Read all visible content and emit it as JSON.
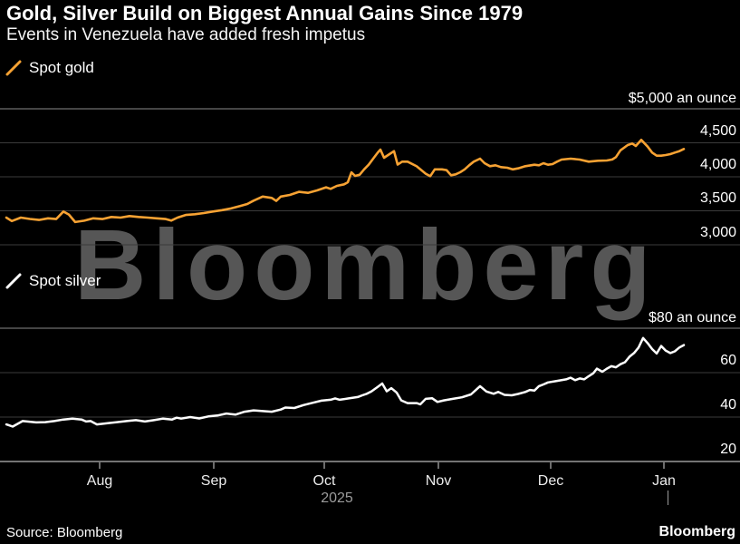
{
  "header": {
    "title": "Gold, Silver Build on Biggest Annual Gains Since 1979",
    "subtitle": "Events in Venezuela have added fresh impetus"
  },
  "legend": {
    "gold_label": "Spot gold",
    "silver_label": "Spot silver"
  },
  "watermark": "Bloomberg",
  "footer": {
    "source": "Source: Bloomberg",
    "brand": "Bloomberg"
  },
  "colors": {
    "background": "#000000",
    "gold_line": "#f7a233",
    "silver_line": "#ffffff",
    "gridline": "#3b3b3b",
    "panel_top_rule": "#8a8a8a",
    "axis_line": "#e8e8e8",
    "tick_mark": "#d9d9d9",
    "text": "#ffffff",
    "muted_text": "#9b9b9b",
    "watermark": "#565656"
  },
  "x_axis": {
    "tick_labels": [
      "Aug",
      "Sep",
      "Oct",
      "Nov",
      "Dec",
      "Jan"
    ],
    "year_label": "2025"
  },
  "chart_data": [
    {
      "type": "line",
      "name": "Spot gold",
      "unit": "US dollars an ounce",
      "color": "#f7a233",
      "y_axis": {
        "top_label": "$5,000 an ounce",
        "ticks": [
          5000,
          4500,
          4000,
          3500,
          3000
        ],
        "tick_labels": [
          "4,500",
          "4,000",
          "3,500",
          "3,000"
        ]
      },
      "y_range_shown": [
        3000,
        5000
      ],
      "points": [
        [
          7,
          3400
        ],
        [
          13,
          3350
        ],
        [
          23,
          3400
        ],
        [
          33,
          3380
        ],
        [
          43,
          3365
        ],
        [
          53,
          3390
        ],
        [
          62,
          3378
        ],
        [
          70,
          3490
        ],
        [
          76,
          3445
        ],
        [
          83,
          3335
        ],
        [
          93,
          3355
        ],
        [
          103,
          3390
        ],
        [
          113,
          3378
        ],
        [
          123,
          3410
        ],
        [
          133,
          3400
        ],
        [
          143,
          3422
        ],
        [
          153,
          3410
        ],
        [
          163,
          3400
        ],
        [
          173,
          3390
        ],
        [
          183,
          3378
        ],
        [
          189,
          3356
        ],
        [
          196,
          3400
        ],
        [
          205,
          3438
        ],
        [
          215,
          3450
        ],
        [
          225,
          3467
        ],
        [
          235,
          3490
        ],
        [
          245,
          3510
        ],
        [
          255,
          3535
        ],
        [
          265,
          3570
        ],
        [
          273,
          3600
        ],
        [
          280,
          3650
        ],
        [
          290,
          3710
        ],
        [
          300,
          3690
        ],
        [
          305,
          3645
        ],
        [
          310,
          3710
        ],
        [
          320,
          3733
        ],
        [
          330,
          3778
        ],
        [
          340,
          3764
        ],
        [
          350,
          3800
        ],
        [
          360,
          3845
        ],
        [
          365,
          3822
        ],
        [
          372,
          3867
        ],
        [
          380,
          3890
        ],
        [
          384,
          3920
        ],
        [
          388,
          4065
        ],
        [
          392,
          4013
        ],
        [
          397,
          4030
        ],
        [
          402,
          4110
        ],
        [
          407,
          4178
        ],
        [
          412,
          4267
        ],
        [
          417,
          4355
        ],
        [
          420,
          4400
        ],
        [
          424,
          4280
        ],
        [
          430,
          4333
        ],
        [
          435,
          4378
        ],
        [
          439,
          4180
        ],
        [
          444,
          4222
        ],
        [
          450,
          4222
        ],
        [
          460,
          4155
        ],
        [
          470,
          4045
        ],
        [
          475,
          4010
        ],
        [
          480,
          4110
        ],
        [
          488,
          4110
        ],
        [
          493,
          4098
        ],
        [
          498,
          4022
        ],
        [
          503,
          4036
        ],
        [
          508,
          4067
        ],
        [
          513,
          4110
        ],
        [
          518,
          4170
        ],
        [
          523,
          4222
        ],
        [
          530,
          4267
        ],
        [
          535,
          4200
        ],
        [
          541,
          4156
        ],
        [
          547,
          4170
        ],
        [
          553,
          4142
        ],
        [
          560,
          4133
        ],
        [
          566,
          4110
        ],
        [
          572,
          4124
        ],
        [
          580,
          4156
        ],
        [
          590,
          4178
        ],
        [
          595,
          4169
        ],
        [
          600,
          4200
        ],
        [
          605,
          4178
        ],
        [
          610,
          4187
        ],
        [
          615,
          4222
        ],
        [
          620,
          4253
        ],
        [
          630,
          4267
        ],
        [
          640,
          4253
        ],
        [
          650,
          4222
        ],
        [
          660,
          4236
        ],
        [
          670,
          4240
        ],
        [
          676,
          4255
        ],
        [
          680,
          4290
        ],
        [
          685,
          4390
        ],
        [
          693,
          4467
        ],
        [
          698,
          4489
        ],
        [
          702,
          4453
        ],
        [
          708,
          4543
        ],
        [
          715,
          4444
        ],
        [
          720,
          4356
        ],
        [
          725,
          4311
        ],
        [
          730,
          4311
        ],
        [
          735,
          4320
        ],
        [
          740,
          4333
        ],
        [
          745,
          4356
        ],
        [
          750,
          4378
        ],
        [
          755,
          4410
        ]
      ]
    },
    {
      "type": "line",
      "name": "Spot silver",
      "unit": "US dollars an ounce",
      "color": "#ffffff",
      "y_axis": {
        "top_label": "$80 an ounce",
        "ticks": [
          80,
          60,
          40,
          20
        ],
        "tick_labels": [
          "60",
          "40",
          "20"
        ]
      },
      "y_range_shown": [
        20,
        80
      ],
      "points": [
        [
          7,
          36.7
        ],
        [
          10,
          36.3
        ],
        [
          14,
          35.7
        ],
        [
          25,
          38.2
        ],
        [
          40,
          37.6
        ],
        [
          50,
          37.7
        ],
        [
          60,
          38.2
        ],
        [
          70,
          38.9
        ],
        [
          80,
          39.3
        ],
        [
          90,
          38.9
        ],
        [
          95,
          38.0
        ],
        [
          100,
          38.2
        ],
        [
          107,
          36.7
        ],
        [
          120,
          37.3
        ],
        [
          140,
          38.2
        ],
        [
          150,
          38.6
        ],
        [
          160,
          38.0
        ],
        [
          170,
          38.6
        ],
        [
          180,
          39.3
        ],
        [
          190,
          38.9
        ],
        [
          195,
          39.7
        ],
        [
          200,
          39.3
        ],
        [
          210,
          40.0
        ],
        [
          220,
          39.4
        ],
        [
          230,
          40.3
        ],
        [
          240,
          40.7
        ],
        [
          250,
          41.6
        ],
        [
          260,
          41.1
        ],
        [
          270,
          42.4
        ],
        [
          280,
          43.0
        ],
        [
          290,
          42.7
        ],
        [
          300,
          42.4
        ],
        [
          310,
          43.4
        ],
        [
          315,
          44.3
        ],
        [
          325,
          44.1
        ],
        [
          335,
          45.4
        ],
        [
          345,
          46.4
        ],
        [
          355,
          47.4
        ],
        [
          365,
          47.8
        ],
        [
          370,
          48.4
        ],
        [
          375,
          47.8
        ],
        [
          385,
          48.4
        ],
        [
          395,
          49.0
        ],
        [
          400,
          49.8
        ],
        [
          405,
          50.5
        ],
        [
          410,
          51.5
        ],
        [
          417,
          53.6
        ],
        [
          422,
          55.1
        ],
        [
          427,
          51.6
        ],
        [
          432,
          53.0
        ],
        [
          438,
          51.0
        ],
        [
          443,
          47.5
        ],
        [
          450,
          46.3
        ],
        [
          460,
          46.3
        ],
        [
          464,
          45.7
        ],
        [
          470,
          48.2
        ],
        [
          477,
          48.5
        ],
        [
          483,
          46.8
        ],
        [
          490,
          47.5
        ],
        [
          500,
          48.2
        ],
        [
          510,
          48.9
        ],
        [
          520,
          50.2
        ],
        [
          530,
          53.9
        ],
        [
          537,
          51.5
        ],
        [
          545,
          50.5
        ],
        [
          550,
          51.3
        ],
        [
          557,
          50.0
        ],
        [
          565,
          49.8
        ],
        [
          572,
          50.4
        ],
        [
          580,
          51.3
        ],
        [
          585,
          52.2
        ],
        [
          590,
          51.9
        ],
        [
          595,
          53.9
        ],
        [
          600,
          54.7
        ],
        [
          605,
          55.6
        ],
        [
          615,
          56.3
        ],
        [
          625,
          57.0
        ],
        [
          630,
          57.7
        ],
        [
          635,
          56.6
        ],
        [
          640,
          57.4
        ],
        [
          645,
          57.0
        ],
        [
          650,
          58.4
        ],
        [
          655,
          59.7
        ],
        [
          659,
          61.8
        ],
        [
          665,
          60.4
        ],
        [
          670,
          61.8
        ],
        [
          675,
          62.9
        ],
        [
          680,
          62.4
        ],
        [
          685,
          63.8
        ],
        [
          690,
          64.7
        ],
        [
          695,
          67.2
        ],
        [
          700,
          68.8
        ],
        [
          705,
          71.3
        ],
        [
          710,
          75.6
        ],
        [
          715,
          73.3
        ],
        [
          720,
          70.6
        ],
        [
          725,
          68.6
        ],
        [
          730,
          72.0
        ],
        [
          735,
          69.9
        ],
        [
          740,
          68.8
        ],
        [
          745,
          69.6
        ],
        [
          750,
          71.3
        ],
        [
          755,
          72.4
        ]
      ]
    }
  ]
}
